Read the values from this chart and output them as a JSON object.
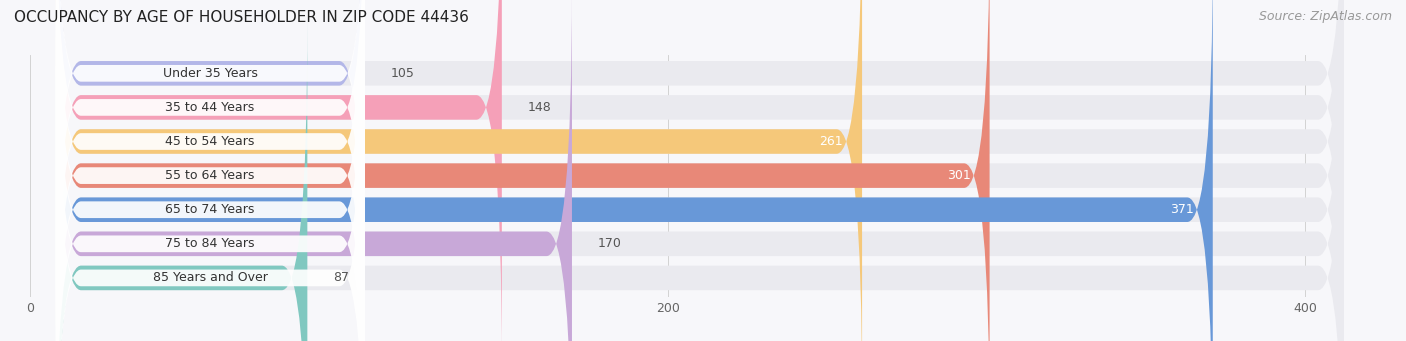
{
  "title": "OCCUPANCY BY AGE OF HOUSEHOLDER IN ZIP CODE 44436",
  "source": "Source: ZipAtlas.com",
  "categories": [
    "Under 35 Years",
    "35 to 44 Years",
    "45 to 54 Years",
    "55 to 64 Years",
    "65 to 74 Years",
    "75 to 84 Years",
    "85 Years and Over"
  ],
  "values": [
    105,
    148,
    261,
    301,
    371,
    170,
    87
  ],
  "bar_colors": [
    "#b3b7e8",
    "#f5a0b8",
    "#f5c87a",
    "#e88878",
    "#6898d8",
    "#c8a8d8",
    "#80c8c0"
  ],
  "bar_bg_color": "#eaeaef",
  "xmin": 0,
  "xmax": 420,
  "xticks": [
    0,
    200,
    400
  ],
  "figsize": [
    14.06,
    3.41
  ],
  "dpi": 100,
  "title_fontsize": 11,
  "source_fontsize": 9,
  "label_fontsize": 9,
  "value_fontsize": 9,
  "bg_color": "#f7f7fa"
}
